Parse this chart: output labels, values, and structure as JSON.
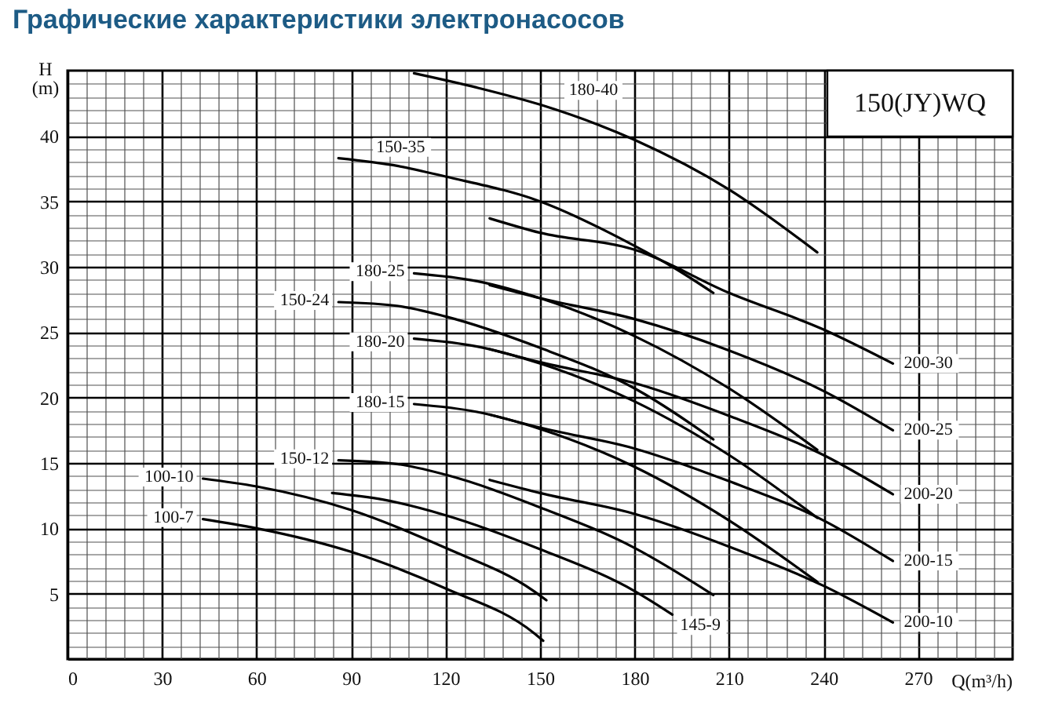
{
  "chart_data": {
    "type": "line",
    "title": "Графические характеристики электронасосов",
    "xlabel": "Q(m³/h)",
    "ylabel": "H\n(m)",
    "annotations": [
      "150(JY)WQ"
    ],
    "xlim": [
      0,
      300
    ],
    "ylim": [
      0,
      45
    ],
    "xticks": [
      0,
      {
        "value": 6,
        "label": null
      },
      {
        "value": 12,
        "label": null
      },
      {
        "value": 18,
        "label": null
      },
      {
        "value": 24,
        "label": null
      },
      30,
      {
        "value": 36,
        "label": null
      },
      {
        "value": 42,
        "label": null
      },
      {
        "value": 48,
        "label": null
      },
      {
        "value": 54,
        "label": null
      },
      60,
      {
        "value": 66,
        "label": null
      },
      {
        "value": 72,
        "label": null
      },
      {
        "value": 78,
        "label": null
      },
      {
        "value": 84,
        "label": null
      },
      90,
      {
        "value": 96,
        "label": null
      },
      {
        "value": 102,
        "label": null
      },
      {
        "value": 108,
        "label": null
      },
      {
        "value": 114,
        "label": null
      },
      120,
      {
        "value": 126,
        "label": null
      },
      {
        "value": 132,
        "label": null
      },
      {
        "value": 138,
        "label": null
      },
      {
        "value": 144,
        "label": null
      },
      150,
      {
        "value": 156,
        "label": null
      },
      {
        "value": 162,
        "label": null
      },
      {
        "value": 168,
        "label": null
      },
      {
        "value": 174,
        "label": null
      },
      180,
      {
        "value": 186,
        "label": null
      },
      {
        "value": 192,
        "label": null
      },
      {
        "value": 198,
        "label": null
      },
      {
        "value": 204,
        "label": null
      },
      210,
      {
        "value": 216,
        "label": null
      },
      {
        "value": 222,
        "label": null
      },
      {
        "value": 228,
        "label": null
      },
      {
        "value": 234,
        "label": null
      },
      240,
      {
        "value": 246,
        "label": null
      },
      {
        "value": 252,
        "label": null
      },
      {
        "value": 258,
        "label": null
      },
      {
        "value": 264,
        "label": null
      },
      270,
      {
        "value": 276,
        "label": null
      },
      {
        "value": 282,
        "label": null
      },
      {
        "value": 288,
        "label": null
      },
      {
        "value": 294,
        "label": null
      }
    ],
    "yticks": [
      {
        "value": 1,
        "label": null
      },
      {
        "value": 2,
        "label": null
      },
      {
        "value": 3,
        "label": null
      },
      {
        "value": 4,
        "label": null
      },
      5,
      {
        "value": 6,
        "label": null
      },
      {
        "value": 7,
        "label": null
      },
      {
        "value": 8,
        "label": null
      },
      {
        "value": 9,
        "label": null
      },
      10,
      {
        "value": 11,
        "label": null
      },
      {
        "value": 12,
        "label": null
      },
      {
        "value": 13,
        "label": null
      },
      {
        "value": 14,
        "label": null
      },
      15,
      {
        "value": 16,
        "label": null
      },
      {
        "value": 17,
        "label": null
      },
      {
        "value": 18,
        "label": null
      },
      {
        "value": 19,
        "label": null
      },
      20,
      {
        "value": 21,
        "label": null
      },
      {
        "value": 22,
        "label": null
      },
      {
        "value": 23,
        "label": null
      },
      {
        "value": 24,
        "label": null
      },
      25,
      {
        "value": 26,
        "label": null
      },
      {
        "value": 27,
        "label": null
      },
      {
        "value": 28,
        "label": null
      },
      {
        "value": 29,
        "label": null
      },
      30,
      {
        "value": 31,
        "label": null
      },
      {
        "value": 32,
        "label": null
      },
      {
        "value": 33,
        "label": null
      },
      {
        "value": 34,
        "label": null
      },
      35,
      {
        "value": 36,
        "label": null
      },
      {
        "value": 37,
        "label": null
      },
      {
        "value": 38,
        "label": null
      },
      {
        "value": 39,
        "label": null
      },
      40,
      {
        "value": 41,
        "label": null
      },
      {
        "value": 42,
        "label": null
      },
      {
        "value": 43,
        "label": null
      },
      {
        "value": 44,
        "label": null
      }
    ],
    "grid": true,
    "legend": false,
    "series": [
      {
        "name": "180-40",
        "color": "#000000",
        "x": [
          110,
          130,
          150,
          180,
          210,
          238
        ],
        "values": [
          44.8,
          43.7,
          42.4,
          39.7,
          35.9,
          31.1
        ]
      },
      {
        "name": "150-35",
        "color": "#000000",
        "x": [
          86,
          105,
          120,
          150,
          180,
          192,
          205
        ],
        "values": [
          38.3,
          37.7,
          36.9,
          35.0,
          31.6,
          30.0,
          28.0
        ]
      },
      {
        "name": "200-30",
        "color": "#000000",
        "x": [
          134,
          150,
          180,
          210,
          240,
          262
        ],
        "values": [
          33.7,
          32.6,
          31.3,
          28.0,
          25.2,
          22.6
        ]
      },
      {
        "name": "180-25",
        "color": "#000000",
        "x": [
          110,
          130,
          150,
          180,
          210,
          238
        ],
        "values": [
          29.5,
          28.9,
          27.6,
          24.7,
          20.7,
          16.0
        ]
      },
      {
        "name": "150-24",
        "color": "#000000",
        "x": [
          86,
          105,
          120,
          150,
          180,
          205
        ],
        "values": [
          27.3,
          27.0,
          26.2,
          23.8,
          20.7,
          16.8
        ]
      },
      {
        "name": "200-25",
        "color": "#000000",
        "x": [
          134,
          150,
          180,
          210,
          240,
          262
        ],
        "values": [
          28.6,
          27.6,
          26.0,
          23.6,
          20.5,
          17.5
        ]
      },
      {
        "name": "180-20",
        "color": "#000000",
        "x": [
          110,
          130,
          150,
          180,
          210,
          238
        ],
        "values": [
          24.5,
          23.9,
          22.6,
          19.7,
          15.6,
          10.8
        ]
      },
      {
        "name": "200-20",
        "color": "#000000",
        "x": [
          134,
          150,
          180,
          210,
          240,
          262
        ],
        "values": [
          23.7,
          22.7,
          21.1,
          18.6,
          15.6,
          12.6
        ]
      },
      {
        "name": "180-15",
        "color": "#000000",
        "x": [
          110,
          130,
          150,
          180,
          210,
          238
        ],
        "values": [
          19.5,
          18.9,
          17.6,
          14.7,
          10.6,
          5.9
        ]
      },
      {
        "name": "200-15",
        "color": "#000000",
        "x": [
          134,
          150,
          180,
          210,
          240,
          262
        ],
        "values": [
          18.7,
          17.7,
          16.1,
          13.6,
          10.6,
          7.5
        ]
      },
      {
        "name": "150-12",
        "color": "#000000",
        "x": [
          86,
          105,
          120,
          150,
          180,
          205
        ],
        "values": [
          15.2,
          14.9,
          14.1,
          11.6,
          8.5,
          4.9
        ]
      },
      {
        "name": "145-9",
        "color": "#000000",
        "x": [
          84,
          100,
          120,
          150,
          180,
          192
        ],
        "values": [
          12.7,
          12.2,
          11.0,
          8.4,
          5.2,
          3.4
        ]
      },
      {
        "name": "200-10",
        "color": "#000000",
        "x": [
          134,
          150,
          180,
          210,
          240,
          262
        ],
        "values": [
          13.7,
          12.7,
          11.1,
          8.6,
          5.6,
          2.8
        ]
      },
      {
        "name": "100-10",
        "color": "#000000",
        "x": [
          43,
          60,
          90,
          120,
          148,
          152
        ],
        "values": [
          13.8,
          13.2,
          11.4,
          8.5,
          5.2,
          4.5
        ]
      },
      {
        "name": "100-7",
        "color": "#000000",
        "x": [
          43,
          60,
          90,
          120,
          148,
          151
        ],
        "values": [
          10.7,
          10.0,
          8.2,
          5.4,
          2.0,
          1.4
        ]
      }
    ]
  }
}
